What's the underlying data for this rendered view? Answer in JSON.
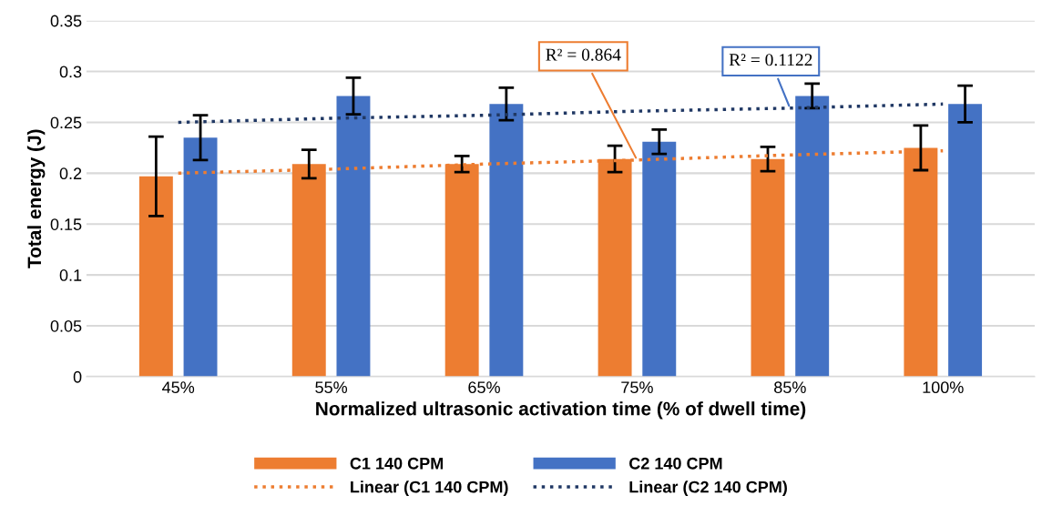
{
  "chart_data": {
    "type": "bar",
    "xlabel": "Normalized ultrasonic activation time (% of dwell time)",
    "ylabel": "Total energy (J)",
    "categories": [
      "45%",
      "55%",
      "65%",
      "75%",
      "85%",
      "100%"
    ],
    "series": [
      {
        "name": "C1 140 CPM",
        "color": "#ed7d31",
        "values": [
          0.197,
          0.209,
          0.209,
          0.214,
          0.214,
          0.225
        ],
        "errors": [
          0.039,
          0.014,
          0.008,
          0.013,
          0.012,
          0.022
        ]
      },
      {
        "name": "C2 140 CPM",
        "color": "#4472c4",
        "values": [
          0.235,
          0.276,
          0.268,
          0.231,
          0.276,
          0.268
        ],
        "errors": [
          0.022,
          0.018,
          0.016,
          0.012,
          0.012,
          0.018
        ]
      },
      {
        "name": "Linear (C1 140 CPM)",
        "type": "line",
        "line_style": "dotted",
        "color": "#ed7d31",
        "values": [
          0.2,
          0.204,
          0.209,
          0.213,
          0.218,
          0.222
        ]
      },
      {
        "name": "Linear (C2 140 CPM)",
        "type": "line",
        "line_style": "dotted",
        "color": "#203864",
        "values": [
          0.25,
          0.254,
          0.257,
          0.261,
          0.264,
          0.268
        ]
      }
    ],
    "annotations": [
      {
        "text": "R² = 0.864",
        "x": "75%",
        "y": 0.213
      },
      {
        "text": "R² = 0.1122",
        "x": "85%",
        "y": 0.264
      }
    ],
    "ylim": [
      0,
      0.35
    ],
    "yticks": [
      0,
      0.05,
      0.1,
      0.15,
      0.2,
      0.25,
      0.3,
      0.35
    ],
    "grid": "y",
    "legend": "bottom"
  }
}
